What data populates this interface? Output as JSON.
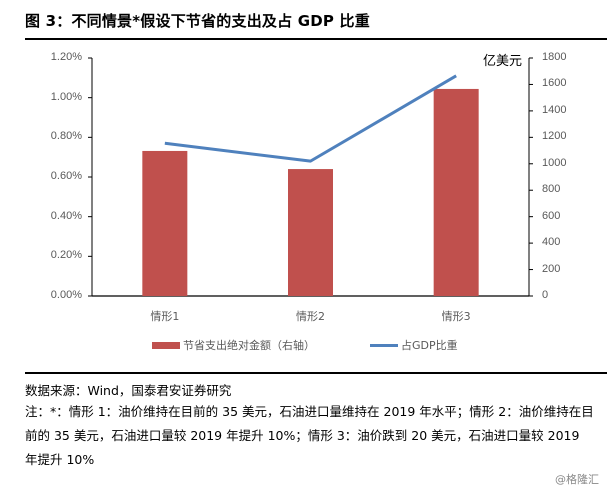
{
  "header": {
    "title": "图 3：不同情景*假设下节省的支出及占 GDP 比重"
  },
  "chart_data": {
    "type": "bar+line",
    "title": "图 3：不同情景*假设下节省的支出及占 GDP 比重",
    "categories": [
      "情形1",
      "情形2",
      "情形3"
    ],
    "series": [
      {
        "name": "节省支出绝对金额（右轴）",
        "type": "bar",
        "axis": "right",
        "color": "#C0504D",
        "values": [
          1097,
          960,
          1566
        ]
      },
      {
        "name": "占GDP比重",
        "type": "line",
        "axis": "left",
        "color": "#4F81BD",
        "values": [
          0.77,
          0.68,
          1.11
        ]
      }
    ],
    "left_axis": {
      "label": "",
      "ticks": [
        "0.00%",
        "0.20%",
        "0.40%",
        "0.60%",
        "0.80%",
        "1.00%",
        "1.20%"
      ],
      "range": [
        0,
        1.2
      ]
    },
    "right_axis": {
      "label": "亿美元",
      "ticks": [
        "0",
        "200",
        "400",
        "600",
        "800",
        "1000",
        "1200",
        "1400",
        "1600",
        "1800"
      ],
      "range": [
        0,
        1800
      ]
    },
    "grid": false,
    "legend_position": "bottom"
  },
  "legend": {
    "bar_label": "节省支出绝对金额（右轴）",
    "line_label": "占GDP比重"
  },
  "footer": {
    "source": "数据来源：Wind，国泰君安证券研究",
    "note": "注：*：情形 1：油价维持在目前的 35 美元，石油进口量维持在 2019 年水平；情形 2：油价维持在目前的 35 美元，石油进口量较 2019 年提升 10%；情形 3：油价跌到 20 美元，石油进口量较 2019 年提升 10%",
    "watermark": "@格隆汇"
  }
}
